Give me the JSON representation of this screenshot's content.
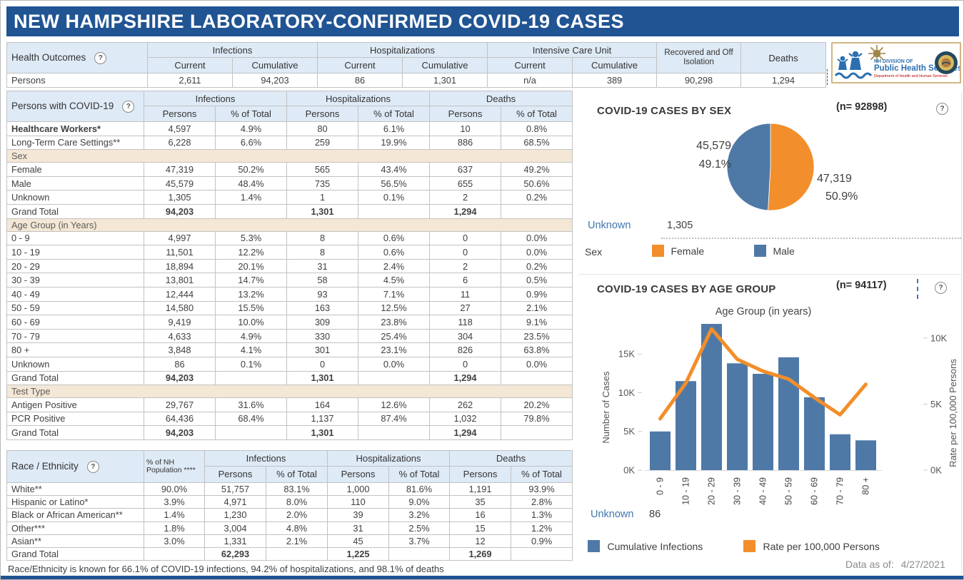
{
  "title": "NEW HAMPSHIRE LABORATORY-CONFIRMED COVID-19 CASES",
  "icons": {
    "help": "?"
  },
  "colors": {
    "header_bar": "#205493",
    "table_header_blue": "#deeaf6",
    "section_tan": "#f4e7d5",
    "bar_blue": "#4e79a7",
    "line_orange": "#f28e2b",
    "unknown_text_blue": "#4176ac"
  },
  "summary_table": {
    "label": "Health Outcomes",
    "row_label": "Persons",
    "groups": [
      {
        "label": "Infections",
        "sub": [
          "Current",
          "Cumulative"
        ]
      },
      {
        "label": "Hospitalizations",
        "sub": [
          "Current",
          "Cumulative"
        ]
      },
      {
        "label": "Intensive Care Unit",
        "sub": [
          "Current",
          "Cumulative"
        ]
      },
      {
        "label": "Recovered and Off Isolation",
        "sub": []
      },
      {
        "label": "Deaths",
        "sub": []
      }
    ],
    "values": [
      "2,611",
      "94,203",
      "86",
      "1,301",
      "n/a",
      "389",
      "90,298",
      "1,294"
    ]
  },
  "logo": {
    "line1": "NH DIVISION OF",
    "line2": "Public Health Services",
    "line3": "Department of Health and Human Services"
  },
  "main_table": {
    "label": "Persons with COVID-19",
    "groups": [
      "Infections",
      "Hospitalizations",
      "Deaths"
    ],
    "subcols": [
      "Persons",
      "% of Total"
    ],
    "top_rows": [
      {
        "label": "Healthcare Workers*",
        "bold": true,
        "values": [
          "4,597",
          "4.9%",
          "80",
          "6.1%",
          "10",
          "0.8%"
        ]
      },
      {
        "label": "Long-Term Care Settings**",
        "values": [
          "6,228",
          "6.6%",
          "259",
          "19.9%",
          "886",
          "68.5%"
        ]
      }
    ],
    "sections": [
      {
        "header": "Sex",
        "rows": [
          {
            "label": "Female",
            "values": [
              "47,319",
              "50.2%",
              "565",
              "43.4%",
              "637",
              "49.2%"
            ]
          },
          {
            "label": "Male",
            "values": [
              "45,579",
              "48.4%",
              "735",
              "56.5%",
              "655",
              "50.6%"
            ]
          },
          {
            "label": "Unknown",
            "values": [
              "1,305",
              "1.4%",
              "1",
              "0.1%",
              "2",
              "0.2%"
            ]
          },
          {
            "label": "Grand Total",
            "total": true,
            "values": [
              "94,203",
              "",
              "1,301",
              "",
              "1,294",
              ""
            ]
          }
        ]
      },
      {
        "header": "Age Group (in Years)",
        "rows": [
          {
            "label": "0 - 9",
            "values": [
              "4,997",
              "5.3%",
              "8",
              "0.6%",
              "0",
              "0.0%"
            ]
          },
          {
            "label": "10 - 19",
            "values": [
              "11,501",
              "12.2%",
              "8",
              "0.6%",
              "0",
              "0.0%"
            ]
          },
          {
            "label": "20 - 29",
            "values": [
              "18,894",
              "20.1%",
              "31",
              "2.4%",
              "2",
              "0.2%"
            ]
          },
          {
            "label": "30 - 39",
            "values": [
              "13,801",
              "14.7%",
              "58",
              "4.5%",
              "6",
              "0.5%"
            ]
          },
          {
            "label": "40 - 49",
            "values": [
              "12,444",
              "13.2%",
              "93",
              "7.1%",
              "11",
              "0.9%"
            ]
          },
          {
            "label": "50 - 59",
            "values": [
              "14,580",
              "15.5%",
              "163",
              "12.5%",
              "27",
              "2.1%"
            ]
          },
          {
            "label": "60 - 69",
            "values": [
              "9,419",
              "10.0%",
              "309",
              "23.8%",
              "118",
              "9.1%"
            ]
          },
          {
            "label": "70 - 79",
            "values": [
              "4,633",
              "4.9%",
              "330",
              "25.4%",
              "304",
              "23.5%"
            ]
          },
          {
            "label": "80 +",
            "values": [
              "3,848",
              "4.1%",
              "301",
              "23.1%",
              "826",
              "63.8%"
            ]
          },
          {
            "label": "Unknown",
            "values": [
              "86",
              "0.1%",
              "0",
              "0.0%",
              "0",
              "0.0%"
            ]
          },
          {
            "label": "Grand Total",
            "total": true,
            "values": [
              "94,203",
              "",
              "1,301",
              "",
              "1,294",
              ""
            ]
          }
        ]
      },
      {
        "header": "Test Type",
        "rows": [
          {
            "label": "Antigen Positive",
            "values": [
              "29,767",
              "31.6%",
              "164",
              "12.6%",
              "262",
              "20.2%"
            ]
          },
          {
            "label": "PCR Positive",
            "values": [
              "64,436",
              "68.4%",
              "1,137",
              "87.4%",
              "1,032",
              "79.8%"
            ]
          },
          {
            "label": "Grand Total",
            "total": true,
            "values": [
              "94,203",
              "",
              "1,301",
              "",
              "1,294",
              ""
            ]
          }
        ]
      }
    ]
  },
  "race_table": {
    "label": "Race / Ethnicity",
    "pop_header": "% of NH Population ****",
    "groups": [
      "Infections",
      "Hospitalizations",
      "Deaths"
    ],
    "subcols": [
      "Persons",
      "% of Total"
    ],
    "rows": [
      {
        "label": "White**",
        "pop": "90.0%",
        "values": [
          "51,757",
          "83.1%",
          "1,000",
          "81.6%",
          "1,191",
          "93.9%"
        ]
      },
      {
        "label": "Hispanic or Latino*",
        "pop": "3.9%",
        "values": [
          "4,971",
          "8.0%",
          "110",
          "9.0%",
          "35",
          "2.8%"
        ]
      },
      {
        "label": "Black or African American**",
        "pop": "1.4%",
        "values": [
          "1,230",
          "2.0%",
          "39",
          "3.2%",
          "16",
          "1.3%"
        ]
      },
      {
        "label": "Other***",
        "pop": "1.8%",
        "values": [
          "3,004",
          "4.8%",
          "31",
          "2.5%",
          "15",
          "1.2%"
        ]
      },
      {
        "label": "Asian**",
        "pop": "3.0%",
        "values": [
          "1,331",
          "2.1%",
          "45",
          "3.7%",
          "12",
          "0.9%"
        ]
      },
      {
        "label": "Grand Total",
        "pop": "",
        "total": true,
        "values": [
          "62,293",
          "",
          "1,225",
          "",
          "1,269",
          ""
        ]
      }
    ]
  },
  "footnote": "Race/Ethnicity is known for 66.1% of COVID-19 infections, 94.2% of hospitalizations, and 98.1% of deaths",
  "pie_section": {
    "title": "COVID-19 CASES BY SEX",
    "n_label": "(n= 92898)",
    "unknown_label": "Unknown",
    "unknown_value": "1,305",
    "legend_title": "Sex",
    "legend": [
      "Female",
      "Male"
    ]
  },
  "age_section": {
    "title": "COVID-19 CASES BY AGE GROUP",
    "n_label": "(n= 94117)",
    "unknown_label": "Unknown",
    "unknown_value": "86",
    "legend": [
      "Cumulative Infections",
      "Rate per 100,000 Persons"
    ],
    "data_as_of_label": "Data as of:",
    "data_as_of_value": "4/27/2021"
  },
  "chart_data": [
    {
      "type": "pie",
      "title": "COVID-19 CASES BY SEX",
      "n": 92898,
      "slices": [
        {
          "label": "Female",
          "value": 47319,
          "percent": 50.9,
          "display": "47,319",
          "pct_label": "50.9%",
          "color": "#f28e2b"
        },
        {
          "label": "Male",
          "value": 45579,
          "percent": 49.1,
          "display": "45,579",
          "pct_label": "49.1%",
          "color": "#4e79a7"
        }
      ],
      "unknown": 1305,
      "legend_position": "bottom"
    },
    {
      "type": "bar",
      "title": "COVID-19 CASES BY AGE GROUP",
      "subtitle": "Age Group (in years)",
      "n": 94117,
      "categories": [
        "0 - 9",
        "10 - 19",
        "20 - 29",
        "30 - 39",
        "40 - 49",
        "50 - 59",
        "60 - 69",
        "70 - 79",
        "80 +"
      ],
      "series": [
        {
          "name": "Cumulative Infections",
          "kind": "bar",
          "axis": "left",
          "color": "#4e79a7",
          "values": [
            4997,
            11501,
            18894,
            13801,
            12444,
            14580,
            9419,
            4633,
            3848
          ]
        },
        {
          "name": "Rate per 100,000 Persons",
          "kind": "line",
          "axis": "right",
          "color": "#f28e2b",
          "values": [
            3900,
            6600,
            10700,
            8400,
            7500,
            6900,
            5500,
            4200,
            6500
          ]
        }
      ],
      "xlabel": "Age Group (in years)",
      "ylabel": "Number of Cases",
      "y2label": "Rate per 100,000 Persons",
      "ylim": [
        0,
        19500
      ],
      "y2lim": [
        0,
        11350
      ],
      "yticks": [
        {
          "label": "0K",
          "value": 0
        },
        {
          "label": "5K",
          "value": 5000
        },
        {
          "label": "10K",
          "value": 10000
        },
        {
          "label": "15K",
          "value": 15000
        }
      ],
      "y2ticks": [
        {
          "label": "0K",
          "value": 0
        },
        {
          "label": "5K",
          "value": 5000
        },
        {
          "label": "10K",
          "value": 10000
        }
      ],
      "grid": false,
      "unknown": 86
    }
  ]
}
